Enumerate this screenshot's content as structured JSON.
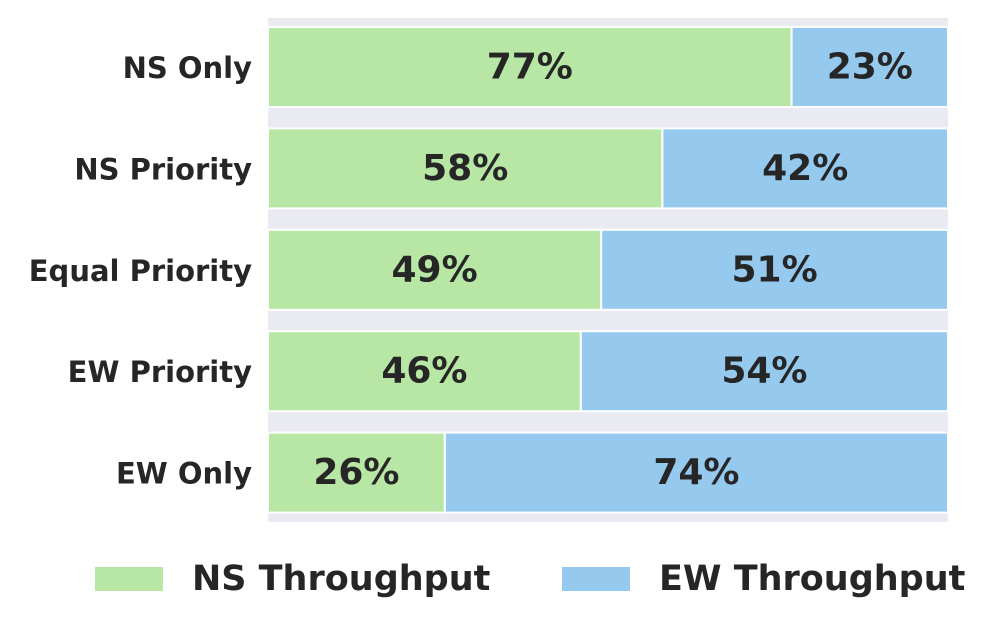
{
  "chart_data": {
    "type": "bar",
    "orientation": "horizontal",
    "stacked": true,
    "categories": [
      "NS Only",
      "NS Priority",
      "Equal Priority",
      "EW Priority",
      "EW Only"
    ],
    "series": [
      {
        "name": "NS Throughput",
        "color": "#b7e6a5",
        "values": [
          77,
          58,
          49,
          46,
          26
        ]
      },
      {
        "name": "EW Throughput",
        "color": "#96c9ee",
        "values": [
          23,
          42,
          51,
          54,
          74
        ]
      }
    ],
    "value_suffix": "%",
    "xlim": [
      0,
      100
    ],
    "grid": true,
    "legend": "bottom"
  }
}
